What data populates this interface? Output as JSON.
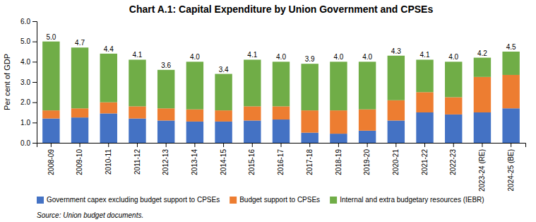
{
  "chart_data": {
    "type": "bar",
    "stacked": true,
    "title": "Chart  A.1: Capital Expenditure by Union Government and CPSEs",
    "y_label": "Per cent of GDP",
    "source": "Source: Union budget documents.",
    "categories": [
      "2008-09",
      "2009-10",
      "2010-11",
      "2011-12",
      "2012-13",
      "2013-14",
      "2014-15",
      "2015-16",
      "2016-17",
      "2017-18",
      "2018-19",
      "2019-20",
      "2020-21",
      "2021-22",
      "2022-23",
      "2023-24 (RE)",
      "2024-25 (BE)"
    ],
    "series": [
      {
        "name": "Government capex excluding budget support to CPSEs",
        "color": "#4472C4",
        "values": [
          1.2,
          1.25,
          1.45,
          1.2,
          1.1,
          1.05,
          1.05,
          1.1,
          1.15,
          0.5,
          0.45,
          0.6,
          1.1,
          1.5,
          1.4,
          1.5,
          1.7
        ]
      },
      {
        "name": "Budget support to CPSEs",
        "color": "#ED7D31",
        "values": [
          0.4,
          0.45,
          0.55,
          0.6,
          0.6,
          0.6,
          0.55,
          0.7,
          0.65,
          1.1,
          1.15,
          1.05,
          1.0,
          1.0,
          0.85,
          1.75,
          1.65
        ]
      },
      {
        "name": "Internal and extra budgetary resources (IEBR)",
        "color": "#70AD47",
        "values": [
          3.4,
          3.0,
          2.4,
          2.3,
          1.9,
          2.35,
          1.8,
          2.3,
          2.2,
          2.3,
          2.4,
          2.35,
          2.2,
          1.6,
          1.75,
          0.95,
          1.15
        ]
      }
    ],
    "totals": [
      5.0,
      4.7,
      4.4,
      4.1,
      3.6,
      4.0,
      3.4,
      4.1,
      4.0,
      3.9,
      4.0,
      4.0,
      4.3,
      4.1,
      4.0,
      4.2,
      4.5
    ],
    "total_labels": [
      "5.0",
      "4.7",
      "4.4",
      "4.1",
      "3.6",
      "4.0",
      "3.4",
      "4.1",
      "4.0",
      "3.9",
      "4.0",
      "4.0",
      "4.3",
      "4.1",
      "4.0",
      "4.2",
      "4.5"
    ],
    "ylim": [
      0,
      6.0
    ],
    "yticks": [
      {
        "value": 0,
        "label": "0.0"
      },
      {
        "value": 1,
        "label": "1.0"
      },
      {
        "value": 2,
        "label": "2.0"
      },
      {
        "value": 3,
        "label": "3.0"
      },
      {
        "value": 4,
        "label": "4.0"
      },
      {
        "value": 5,
        "label": "5.0"
      },
      {
        "value": 6,
        "label": "6.0"
      }
    ],
    "grid": false,
    "legend": "bottom"
  }
}
